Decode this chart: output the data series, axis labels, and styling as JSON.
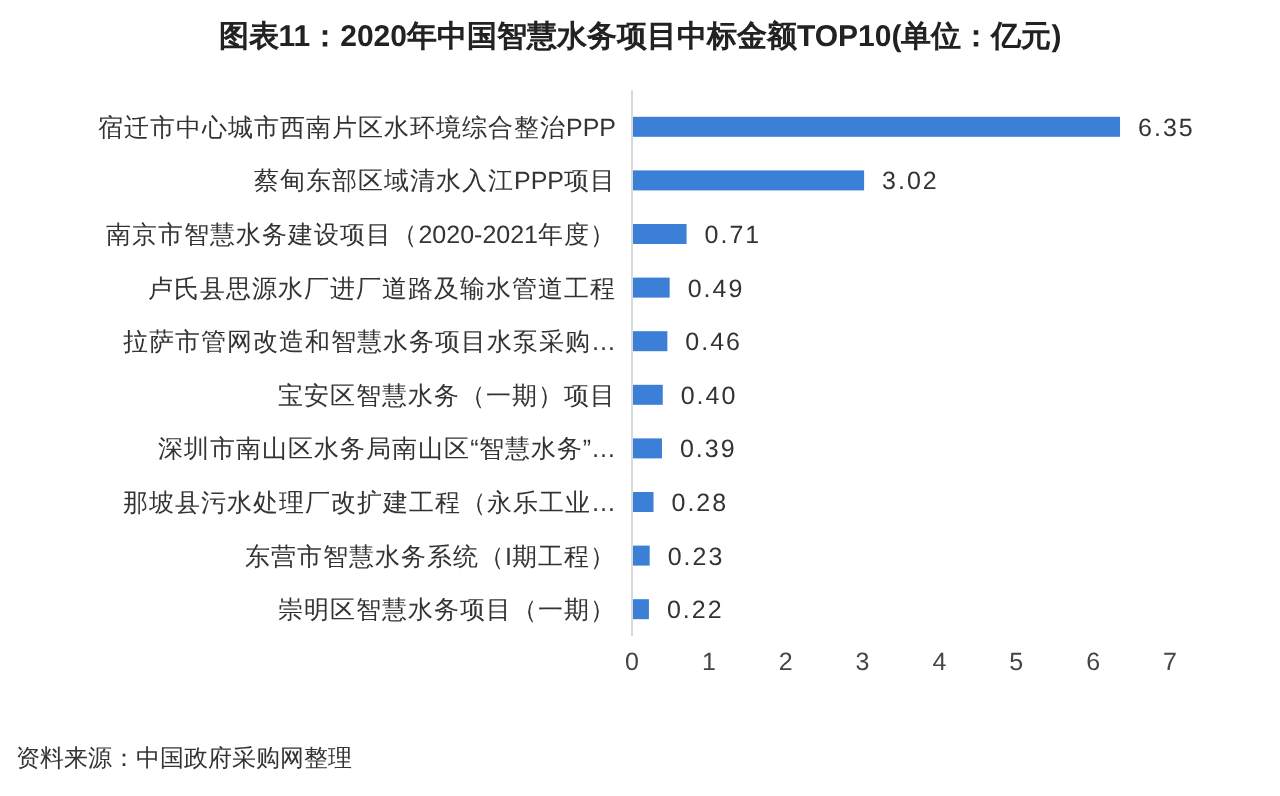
{
  "chart_data": {
    "type": "bar",
    "orientation": "horizontal",
    "title": "图表11：2020年中国智慧水务项目中标金额TOP10(单位：亿元)",
    "categories": [
      "宿迁市中心城市西南片区水环境综合整治PPP",
      "蔡甸东部区域清水入江PPP项目",
      "南京市智慧水务建设项目（2020-2021年度）",
      "卢氏县思源水厂进厂道路及输水管道工程",
      "拉萨市管网改造和智慧水务项目水泵采购…",
      "宝安区智慧水务（一期）项目",
      "深圳市南山区水务局南山区“智慧水务”…",
      "那坡县污水处理厂改扩建工程（永乐工业…",
      "东营市智慧水务系统（I期工程）",
      "崇明区智慧水务项目（一期）"
    ],
    "values": [
      6.35,
      3.02,
      0.71,
      0.49,
      0.46,
      0.4,
      0.39,
      0.28,
      0.23,
      0.22
    ],
    "value_labels": [
      "6.35",
      "3.02",
      "0.71",
      "0.49",
      "0.46",
      "0.40",
      "0.39",
      "0.28",
      "0.23",
      "0.22"
    ],
    "color": "#3b7fd6",
    "xlim": [
      0,
      7
    ],
    "xticks": [
      0,
      1,
      2,
      3,
      4,
      5,
      6,
      7
    ],
    "grid": false,
    "annotations": [
      "资料来源：中国政府采购网整理"
    ]
  }
}
